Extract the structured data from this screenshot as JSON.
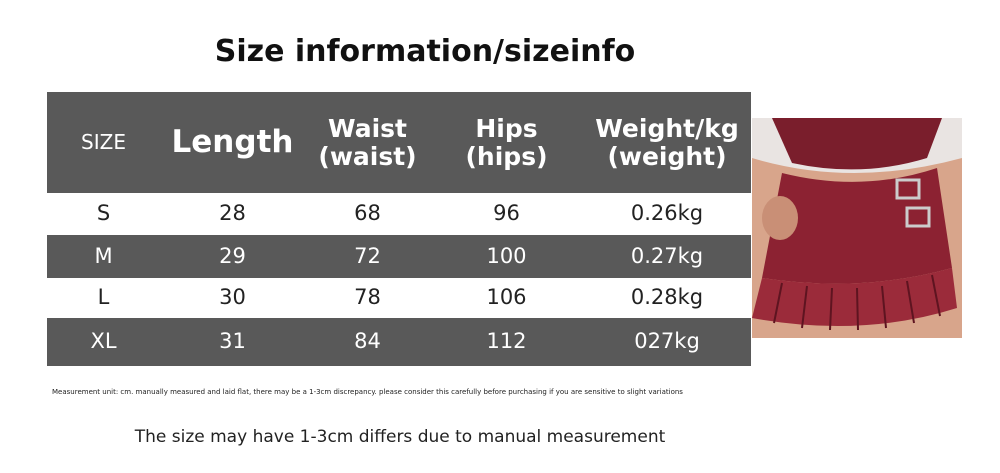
{
  "title": "Size information/sizeinfo",
  "table": {
    "header": [
      [
        "SIZE"
      ],
      [
        "Length"
      ],
      [
        "Waist",
        "(waist)"
      ],
      [
        "Hips",
        "(hips)"
      ],
      [
        "Weight/kg",
        "(weight)"
      ]
    ],
    "rows": [
      [
        "S",
        28,
        68,
        96,
        "0.26kg"
      ],
      [
        "M",
        29,
        72,
        100,
        "0.27kg"
      ],
      [
        "L",
        30,
        78,
        106,
        "0.28kg"
      ],
      [
        "XL",
        31,
        84,
        112,
        "027kg"
      ]
    ]
  },
  "note": "Measurement unit: cm. manually measured and laid flat, there may be a 1-3cm discrepancy. please consider this carefully before purchasing if you are sensitive to slight variations",
  "footer": "The size may have 1-3cm differs due to manual measurement"
}
